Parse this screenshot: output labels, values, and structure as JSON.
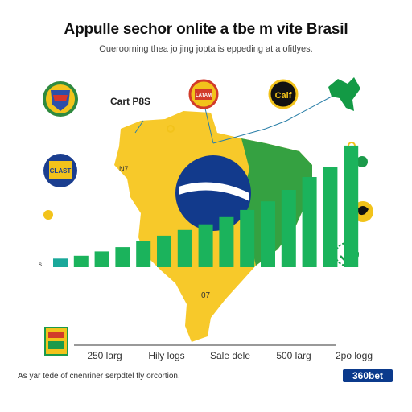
{
  "title": "Appulle sechor onlite a tbe m vite Brasil",
  "subtitle": "Oueroorning thea jo jing jopta is eppeding at a ofitlyes.",
  "annotations": {
    "cart_label": "Cart P8S",
    "map_text_1": "N7",
    "map_text_2": "07",
    "axis_tick_left": "s",
    "logo_left_top": "",
    "logo_left_mid": "CLAST",
    "logo_top_red": "LATAM",
    "logo_top_black": "Calf"
  },
  "footnote": "As yar tede of cnenriner serpdtel fly orcortion.",
  "brand": "360bet",
  "colors": {
    "bar_teal": "#1aa89a",
    "bar_green": "#1bb35c",
    "map_yellow": "#f7c92a",
    "flag_blue": "#123a8c",
    "flag_green": "#139a45",
    "trend_line": "#2a7fa8"
  },
  "chart_data": {
    "type": "bar",
    "title": "Appulle sechor onlite a tbe m vite Brasil",
    "subtitle": "Oueroorning thea jo jing jopta is eppeding at a ofitlyes.",
    "x_tick_labels": [
      "250 larg",
      "Hily logs",
      "Sale dele",
      "500 larg",
      "2po logg"
    ],
    "values": [
      12,
      16,
      22,
      28,
      36,
      44,
      52,
      60,
      70,
      80,
      92,
      108,
      126,
      140,
      170
    ],
    "ylim": [
      0,
      180
    ],
    "grid": false,
    "legend": "none"
  }
}
